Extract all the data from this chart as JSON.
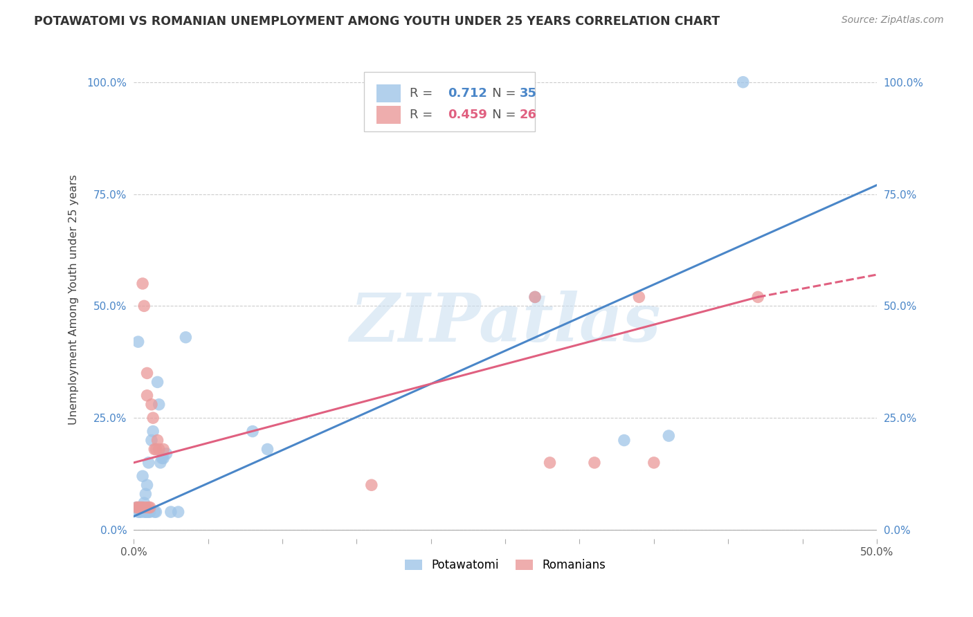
{
  "title": "POTAWATOMI VS ROMANIAN UNEMPLOYMENT AMONG YOUTH UNDER 25 YEARS CORRELATION CHART",
  "source": "Source: ZipAtlas.com",
  "ylabel": "Unemployment Among Youth under 25 years",
  "xlim": [
    0,
    0.5
  ],
  "ylim": [
    -0.02,
    1.05
  ],
  "xticks": [
    0.0,
    0.05,
    0.1,
    0.15,
    0.2,
    0.25,
    0.3,
    0.35,
    0.4,
    0.45,
    0.5
  ],
  "yticks": [
    0.0,
    0.25,
    0.5,
    0.75,
    1.0
  ],
  "ytick_labels": [
    "0.0%",
    "25.0%",
    "50.0%",
    "75.0%",
    "100.0%"
  ],
  "xtick_labels_show": [
    "0.0%",
    "50.0%"
  ],
  "blue_R": "0.712",
  "blue_N": "35",
  "pink_R": "0.459",
  "pink_N": "26",
  "blue_color": "#9fc5e8",
  "pink_color": "#ea9999",
  "blue_line_color": "#4a86c8",
  "pink_line_color": "#e06080",
  "blue_points": [
    [
      0.002,
      0.05
    ],
    [
      0.003,
      0.04
    ],
    [
      0.004,
      0.04
    ],
    [
      0.005,
      0.04
    ],
    [
      0.006,
      0.05
    ],
    [
      0.006,
      0.12
    ],
    [
      0.007,
      0.04
    ],
    [
      0.007,
      0.06
    ],
    [
      0.008,
      0.04
    ],
    [
      0.008,
      0.08
    ],
    [
      0.009,
      0.04
    ],
    [
      0.009,
      0.1
    ],
    [
      0.01,
      0.04
    ],
    [
      0.01,
      0.15
    ],
    [
      0.011,
      0.04
    ],
    [
      0.012,
      0.2
    ],
    [
      0.013,
      0.22
    ],
    [
      0.014,
      0.04
    ],
    [
      0.015,
      0.04
    ],
    [
      0.016,
      0.33
    ],
    [
      0.017,
      0.28
    ],
    [
      0.018,
      0.15
    ],
    [
      0.019,
      0.16
    ],
    [
      0.02,
      0.16
    ],
    [
      0.022,
      0.17
    ],
    [
      0.025,
      0.04
    ],
    [
      0.03,
      0.04
    ],
    [
      0.035,
      0.43
    ],
    [
      0.08,
      0.22
    ],
    [
      0.09,
      0.18
    ],
    [
      0.27,
      0.52
    ],
    [
      0.33,
      0.2
    ],
    [
      0.36,
      0.21
    ],
    [
      0.41,
      1.0
    ],
    [
      0.003,
      0.42
    ]
  ],
  "pink_points": [
    [
      0.002,
      0.05
    ],
    [
      0.003,
      0.05
    ],
    [
      0.004,
      0.05
    ],
    [
      0.005,
      0.05
    ],
    [
      0.006,
      0.05
    ],
    [
      0.006,
      0.55
    ],
    [
      0.007,
      0.5
    ],
    [
      0.008,
      0.05
    ],
    [
      0.009,
      0.35
    ],
    [
      0.009,
      0.3
    ],
    [
      0.01,
      0.05
    ],
    [
      0.011,
      0.05
    ],
    [
      0.012,
      0.28
    ],
    [
      0.013,
      0.25
    ],
    [
      0.014,
      0.18
    ],
    [
      0.015,
      0.18
    ],
    [
      0.016,
      0.2
    ],
    [
      0.017,
      0.18
    ],
    [
      0.02,
      0.18
    ],
    [
      0.16,
      0.1
    ],
    [
      0.27,
      0.52
    ],
    [
      0.28,
      0.15
    ],
    [
      0.31,
      0.15
    ],
    [
      0.34,
      0.52
    ],
    [
      0.35,
      0.15
    ],
    [
      0.42,
      0.52
    ]
  ],
  "blue_line": {
    "x0": 0.0,
    "y0": 0.03,
    "x1": 0.5,
    "y1": 0.77
  },
  "pink_line_solid": {
    "x0": 0.0,
    "y0": 0.15,
    "x1": 0.42,
    "y1": 0.52
  },
  "pink_line_dashed": {
    "x0": 0.42,
    "y0": 0.52,
    "x1": 0.5,
    "y1": 0.57
  },
  "legend_blue_label": "Potawatomi",
  "legend_pink_label": "Romanians",
  "background_color": "#ffffff",
  "grid_color": "#cccccc",
  "watermark_text": "ZIPatlas"
}
